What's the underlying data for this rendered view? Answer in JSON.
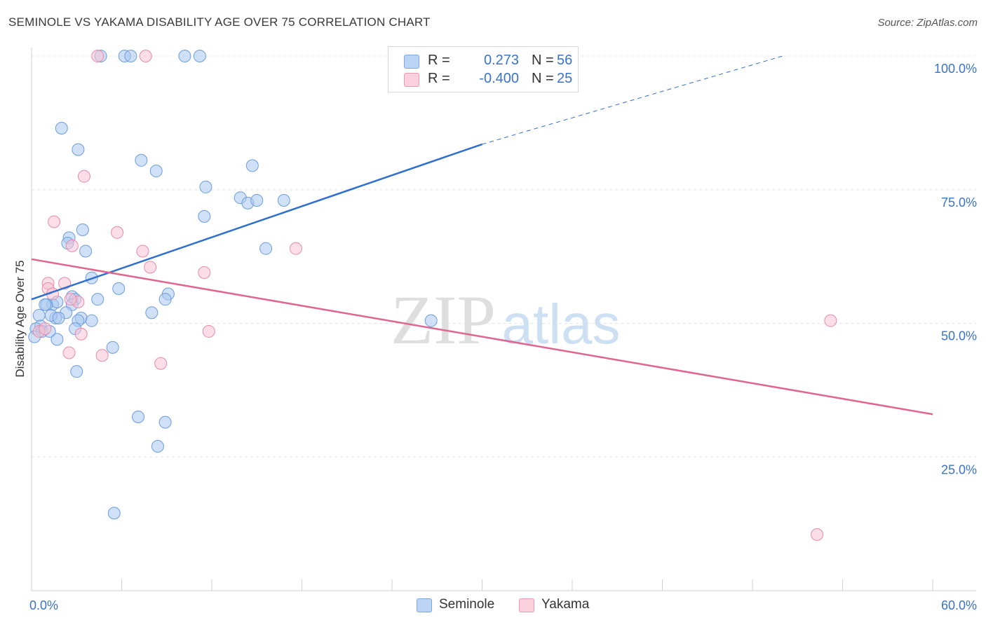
{
  "title": "SEMINOLE VS YAKAMA DISABILITY AGE OVER 75 CORRELATION CHART",
  "source": "Source: ZipAtlas.com",
  "watermark": {
    "zip": "ZIP",
    "atlas": "atlas"
  },
  "legend_top": [
    {
      "label": "R =",
      "r": "0.273",
      "n_label": "N =",
      "n": "56",
      "color": "#a9c7ef"
    },
    {
      "label": "R =",
      "r": "-0.400",
      "n_label": "N =",
      "n": "25",
      "color": "#f7bfd0"
    }
  ],
  "legend_bottom": [
    {
      "label": "Seminole",
      "color": "#a9c7ef"
    },
    {
      "label": "Yakama",
      "color": "#f7bfd0"
    }
  ],
  "colors": {
    "seminole_fill": "#a9c7ef",
    "seminole_stroke": "#6b9de0",
    "seminole_line": "#2f6fcf",
    "yakama_fill": "#f7c3d3",
    "yakama_stroke": "#e88aab",
    "yakama_line": "#e0658f",
    "tick_text": "#3a73c9",
    "grid": "#e4e4e4"
  },
  "chart_data": {
    "type": "scatter",
    "title": "SEMINOLE VS YAKAMA DISABILITY AGE OVER 75 CORRELATION CHART",
    "xlabel": "",
    "ylabel": "Disability Age Over 75",
    "xlim": [
      0,
      60
    ],
    "ylim": [
      0,
      100
    ],
    "x_tick_labels": [
      {
        "value": 0,
        "label": "0.0%"
      },
      {
        "value": 60,
        "label": "60.0%"
      }
    ],
    "y_tick_labels": [
      {
        "value": 100,
        "label": "100.0%"
      },
      {
        "value": 75,
        "label": "75.0%"
      },
      {
        "value": 50,
        "label": "50.0%"
      },
      {
        "value": 25,
        "label": "25.0%"
      }
    ],
    "x_minor_ticks": [
      6,
      12,
      18,
      24,
      30,
      36,
      42,
      48,
      54,
      60
    ],
    "series": [
      {
        "name": "Seminole",
        "points": [
          [
            4.6,
            100
          ],
          [
            6.2,
            100
          ],
          [
            6.6,
            100
          ],
          [
            10.2,
            100
          ],
          [
            11.2,
            100
          ],
          [
            2.0,
            86.5
          ],
          [
            3.1,
            82.5
          ],
          [
            7.3,
            80.5
          ],
          [
            8.3,
            78.5
          ],
          [
            14.7,
            79.5
          ],
          [
            11.6,
            75.5
          ],
          [
            13.9,
            73.5
          ],
          [
            14.4,
            72.5
          ],
          [
            15.0,
            73
          ],
          [
            16.8,
            73
          ],
          [
            11.5,
            70
          ],
          [
            3.4,
            67.5
          ],
          [
            2.5,
            66
          ],
          [
            2.4,
            65
          ],
          [
            3.6,
            63.5
          ],
          [
            15.6,
            64
          ],
          [
            4.0,
            58.5
          ],
          [
            5.8,
            56.5
          ],
          [
            9.1,
            55.5
          ],
          [
            8.9,
            54.5
          ],
          [
            4.4,
            54.5
          ],
          [
            2.7,
            55
          ],
          [
            2.9,
            54.5
          ],
          [
            1.4,
            53.5
          ],
          [
            1.7,
            54
          ],
          [
            1.0,
            53.5
          ],
          [
            2.7,
            53.5
          ],
          [
            8.0,
            52
          ],
          [
            2.3,
            52
          ],
          [
            1.6,
            51
          ],
          [
            1.3,
            51.5
          ],
          [
            1.8,
            51
          ],
          [
            0.5,
            51.5
          ],
          [
            3.3,
            51
          ],
          [
            4.0,
            50.5
          ],
          [
            3.1,
            50.5
          ],
          [
            26.6,
            50.5
          ],
          [
            0.6,
            49.5
          ],
          [
            0.3,
            49
          ],
          [
            0.7,
            48.5
          ],
          [
            2.9,
            49
          ],
          [
            1.7,
            47
          ],
          [
            1.2,
            48.5
          ],
          [
            5.4,
            45.5
          ],
          [
            3.0,
            41
          ],
          [
            7.1,
            32.5
          ],
          [
            8.9,
            31.5
          ],
          [
            8.4,
            27
          ],
          [
            5.5,
            14.5
          ],
          [
            0.9,
            53.5
          ],
          [
            0.2,
            47.5
          ]
        ],
        "trend": {
          "x0": 0,
          "y0": 54.5,
          "x1": 30,
          "y1": 83.5,
          "dash_to_x": 50,
          "dash_to_y": 100
        }
      },
      {
        "name": "Yakama",
        "points": [
          [
            4.4,
            100
          ],
          [
            7.6,
            100
          ],
          [
            3.5,
            77.5
          ],
          [
            1.5,
            69
          ],
          [
            5.7,
            67
          ],
          [
            2.7,
            64.5
          ],
          [
            7.4,
            63.5
          ],
          [
            17.6,
            64
          ],
          [
            1.1,
            57.5
          ],
          [
            1.1,
            56.5
          ],
          [
            2.2,
            57.5
          ],
          [
            7.9,
            60.5
          ],
          [
            11.5,
            59.5
          ],
          [
            3.1,
            54
          ],
          [
            2.6,
            54.5
          ],
          [
            1.4,
            55.5
          ],
          [
            0.5,
            48.5
          ],
          [
            3.3,
            48
          ],
          [
            11.8,
            48.5
          ],
          [
            2.5,
            44.5
          ],
          [
            4.7,
            44
          ],
          [
            8.6,
            42.5
          ],
          [
            53.2,
            50.5
          ],
          [
            52.3,
            10.5
          ],
          [
            0.9,
            49
          ]
        ],
        "trend": {
          "x0": 0,
          "y0": 62,
          "x1": 60,
          "y1": 33
        }
      }
    ]
  }
}
